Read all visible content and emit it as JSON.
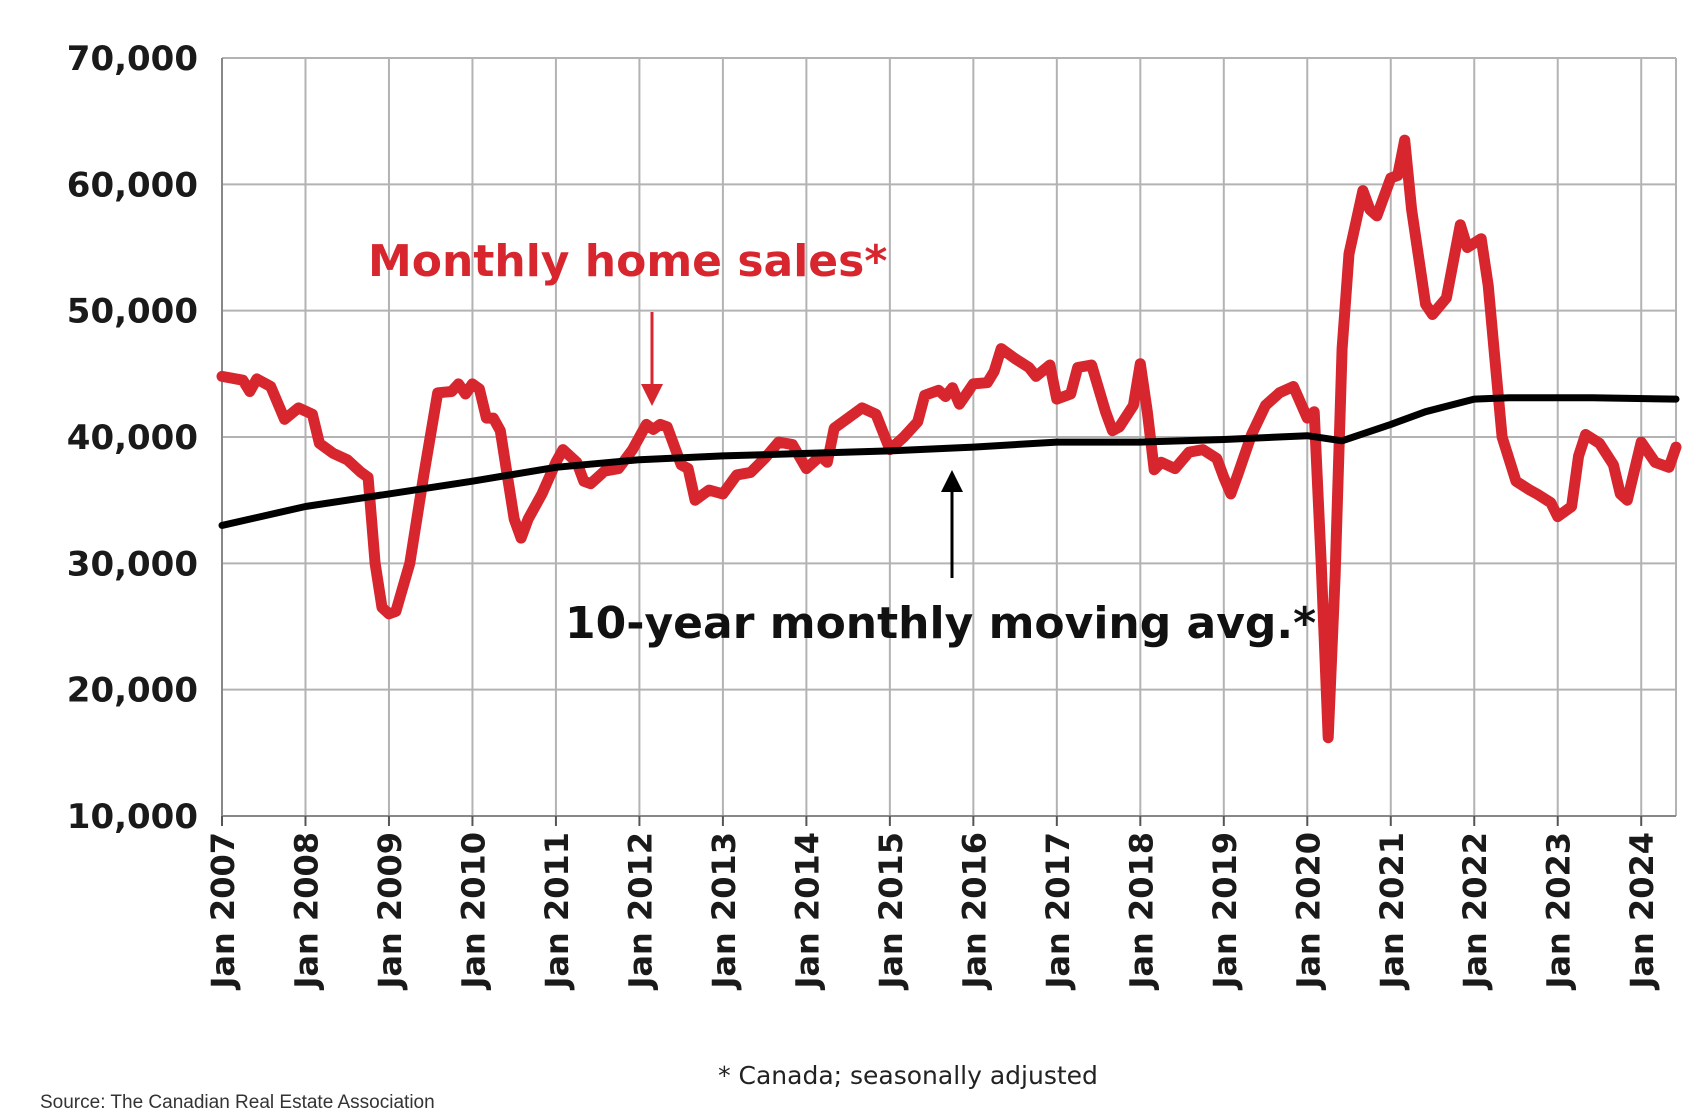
{
  "chart_data": {
    "type": "line",
    "x_range": [
      "2007-01",
      "2024-06"
    ],
    "ylim": [
      10000,
      70000
    ],
    "y_ticks": [
      {
        "value": 10000,
        "label": "10,000"
      },
      {
        "value": 20000,
        "label": "20,000"
      },
      {
        "value": 30000,
        "label": "30,000"
      },
      {
        "value": 40000,
        "label": "40,000"
      },
      {
        "value": 50000,
        "label": "50,000"
      },
      {
        "value": 60000,
        "label": "60,000"
      },
      {
        "value": 70000,
        "label": "70,000"
      }
    ],
    "x_ticks": [
      {
        "date": "2007-01",
        "label": "Jan 2007"
      },
      {
        "date": "2008-01",
        "label": "Jan 2008"
      },
      {
        "date": "2009-01",
        "label": "Jan 2009"
      },
      {
        "date": "2010-01",
        "label": "Jan 2010"
      },
      {
        "date": "2011-01",
        "label": "Jan 2011"
      },
      {
        "date": "2012-01",
        "label": "Jan 2012"
      },
      {
        "date": "2013-01",
        "label": "Jan 2013"
      },
      {
        "date": "2014-01",
        "label": "Jan 2014"
      },
      {
        "date": "2015-01",
        "label": "Jan 2015"
      },
      {
        "date": "2016-01",
        "label": "Jan 2016"
      },
      {
        "date": "2017-01",
        "label": "Jan 2017"
      },
      {
        "date": "2018-01",
        "label": "Jan 2018"
      },
      {
        "date": "2019-01",
        "label": "Jan 2019"
      },
      {
        "date": "2020-01",
        "label": "Jan 2020"
      },
      {
        "date": "2021-01",
        "label": "Jan 2021"
      },
      {
        "date": "2022-01",
        "label": "Jan 2022"
      },
      {
        "date": "2023-01",
        "label": "Jan 2023"
      },
      {
        "date": "2024-01",
        "label": "Jan 2024"
      }
    ],
    "grid": true,
    "series": [
      {
        "name": "Monthly home sales*",
        "color": "#d7262e",
        "points": [
          [
            "2007-01",
            44800
          ],
          [
            "2007-04",
            44500
          ],
          [
            "2007-05",
            43600
          ],
          [
            "2007-06",
            44600
          ],
          [
            "2007-08",
            44000
          ],
          [
            "2007-10",
            41400
          ],
          [
            "2007-12",
            42300
          ],
          [
            "2008-02",
            41800
          ],
          [
            "2008-03",
            39500
          ],
          [
            "2008-05",
            38700
          ],
          [
            "2008-07",
            38200
          ],
          [
            "2008-09",
            37200
          ],
          [
            "2008-10",
            36800
          ],
          [
            "2008-11",
            30000
          ],
          [
            "2008-12",
            26500
          ],
          [
            "2009-01",
            26000
          ],
          [
            "2009-02",
            26200
          ],
          [
            "2009-04",
            30000
          ],
          [
            "2009-06",
            37000
          ],
          [
            "2009-08",
            43500
          ],
          [
            "2009-10",
            43600
          ],
          [
            "2009-11",
            44200
          ],
          [
            "2009-12",
            43400
          ],
          [
            "2010-01",
            44200
          ],
          [
            "2010-02",
            43800
          ],
          [
            "2010-03",
            41500
          ],
          [
            "2010-04",
            41500
          ],
          [
            "2010-05",
            40500
          ],
          [
            "2010-06",
            37000
          ],
          [
            "2010-07",
            33500
          ],
          [
            "2010-08",
            32000
          ],
          [
            "2010-09",
            33500
          ],
          [
            "2010-11",
            35500
          ],
          [
            "2011-01",
            38000
          ],
          [
            "2011-02",
            39000
          ],
          [
            "2011-04",
            38000
          ],
          [
            "2011-05",
            36500
          ],
          [
            "2011-06",
            36300
          ],
          [
            "2011-08",
            37300
          ],
          [
            "2011-10",
            37500
          ],
          [
            "2011-12",
            39000
          ],
          [
            "2012-02",
            41000
          ],
          [
            "2012-03",
            40600
          ],
          [
            "2012-04",
            41000
          ],
          [
            "2012-05",
            40800
          ],
          [
            "2012-07",
            37800
          ],
          [
            "2012-08",
            37500
          ],
          [
            "2012-09",
            35000
          ],
          [
            "2012-11",
            35800
          ],
          [
            "2013-01",
            35500
          ],
          [
            "2013-03",
            37000
          ],
          [
            "2013-05",
            37200
          ],
          [
            "2013-07",
            38300
          ],
          [
            "2013-09",
            39600
          ],
          [
            "2013-11",
            39400
          ],
          [
            "2014-01",
            37500
          ],
          [
            "2014-03",
            38500
          ],
          [
            "2014-04",
            38000
          ],
          [
            "2014-05",
            40700
          ],
          [
            "2014-07",
            41500
          ],
          [
            "2014-09",
            42300
          ],
          [
            "2014-11",
            41800
          ],
          [
            "2015-01",
            39000
          ],
          [
            "2015-03",
            40000
          ],
          [
            "2015-05",
            41200
          ],
          [
            "2015-06",
            43300
          ],
          [
            "2015-08",
            43700
          ],
          [
            "2015-09",
            43200
          ],
          [
            "2015-10",
            43900
          ],
          [
            "2015-11",
            42600
          ],
          [
            "2016-01",
            44200
          ],
          [
            "2016-03",
            44300
          ],
          [
            "2016-04",
            45200
          ],
          [
            "2016-05",
            47000
          ],
          [
            "2016-07",
            46200
          ],
          [
            "2016-09",
            45500
          ],
          [
            "2016-10",
            44800
          ],
          [
            "2016-12",
            45700
          ],
          [
            "2017-01",
            43000
          ],
          [
            "2017-03",
            43400
          ],
          [
            "2017-04",
            45500
          ],
          [
            "2017-06",
            45700
          ],
          [
            "2017-08",
            42000
          ],
          [
            "2017-09",
            40500
          ],
          [
            "2017-10",
            40800
          ],
          [
            "2017-12",
            42500
          ],
          [
            "2018-01",
            45800
          ],
          [
            "2018-02",
            42000
          ],
          [
            "2018-03",
            37400
          ],
          [
            "2018-04",
            38000
          ],
          [
            "2018-06",
            37500
          ],
          [
            "2018-08",
            38800
          ],
          [
            "2018-10",
            39000
          ],
          [
            "2018-12",
            38300
          ],
          [
            "2019-01",
            36800
          ],
          [
            "2019-02",
            35500
          ],
          [
            "2019-03",
            37000
          ],
          [
            "2019-05",
            40200
          ],
          [
            "2019-07",
            42500
          ],
          [
            "2019-09",
            43500
          ],
          [
            "2019-11",
            44000
          ],
          [
            "2020-01",
            41500
          ],
          [
            "2020-02",
            42000
          ],
          [
            "2020-03",
            30000
          ],
          [
            "2020-04",
            16200
          ],
          [
            "2020-05",
            29000
          ],
          [
            "2020-06",
            47000
          ],
          [
            "2020-07",
            54500
          ],
          [
            "2020-09",
            59500
          ],
          [
            "2020-10",
            58000
          ],
          [
            "2020-11",
            57500
          ],
          [
            "2021-01",
            60500
          ],
          [
            "2021-02",
            60700
          ],
          [
            "2021-03",
            63500
          ],
          [
            "2021-04",
            58000
          ],
          [
            "2021-06",
            50500
          ],
          [
            "2021-07",
            49700
          ],
          [
            "2021-09",
            51000
          ],
          [
            "2021-11",
            56800
          ],
          [
            "2021-12",
            55000
          ],
          [
            "2022-02",
            55700
          ],
          [
            "2022-03",
            52000
          ],
          [
            "2022-04",
            46000
          ],
          [
            "2022-05",
            40000
          ],
          [
            "2022-07",
            36500
          ],
          [
            "2022-09",
            35800
          ],
          [
            "2022-10",
            35500
          ],
          [
            "2022-12",
            34800
          ],
          [
            "2023-01",
            33700
          ],
          [
            "2023-03",
            34500
          ],
          [
            "2023-04",
            38500
          ],
          [
            "2023-05",
            40200
          ],
          [
            "2023-07",
            39500
          ],
          [
            "2023-09",
            37800
          ],
          [
            "2023-10",
            35500
          ],
          [
            "2023-11",
            35000
          ],
          [
            "2024-01",
            39600
          ],
          [
            "2024-03",
            38000
          ],
          [
            "2024-04",
            37800
          ],
          [
            "2024-05",
            37600
          ],
          [
            "2024-06",
            39200
          ]
        ]
      },
      {
        "name": "10-year monthly moving avg.*",
        "color": "#000000",
        "points": [
          [
            "2007-01",
            33000
          ],
          [
            "2008-01",
            34500
          ],
          [
            "2009-01",
            35500
          ],
          [
            "2010-01",
            36500
          ],
          [
            "2011-01",
            37600
          ],
          [
            "2012-01",
            38200
          ],
          [
            "2013-01",
            38500
          ],
          [
            "2014-01",
            38700
          ],
          [
            "2015-01",
            38900
          ],
          [
            "2016-01",
            39200
          ],
          [
            "2017-01",
            39600
          ],
          [
            "2018-01",
            39600
          ],
          [
            "2019-01",
            39800
          ],
          [
            "2020-01",
            40100
          ],
          [
            "2020-06",
            39700
          ],
          [
            "2021-01",
            41000
          ],
          [
            "2021-06",
            42000
          ],
          [
            "2022-01",
            43000
          ],
          [
            "2022-06",
            43100
          ],
          [
            "2023-01",
            43100
          ],
          [
            "2023-06",
            43100
          ],
          [
            "2024-06",
            43000
          ]
        ]
      }
    ],
    "annotations": [
      {
        "text": "Monthly home sales*",
        "color": "#d7262e",
        "points_to": [
          "2012-02",
          40600
        ]
      },
      {
        "text": "10-year monthly moving avg.*",
        "color": "#111111",
        "points_to": [
          "2015-10",
          39200
        ]
      }
    ],
    "footnote": "* Canada; seasonally adjusted",
    "source": "Source: The Canadian Real Estate Association"
  }
}
